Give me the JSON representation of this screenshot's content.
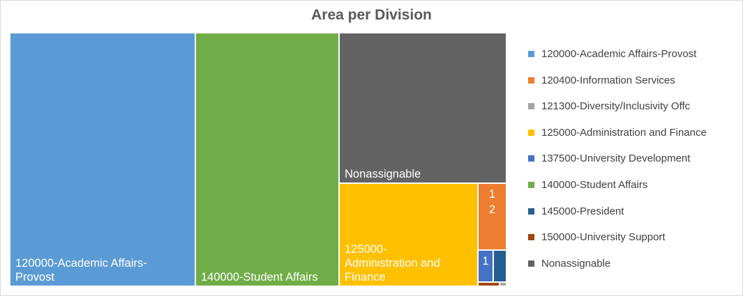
{
  "chart_data": {
    "type": "treemap",
    "title": "Area per Division",
    "legend_position": "right",
    "items": [
      {
        "name": "120000-Academic Affairs-Provost",
        "label": [
          "120000-Academic Affairs-",
          "Provost"
        ],
        "value": 37.5,
        "color": "#5B9BD5"
      },
      {
        "name": "140000-Student Affairs",
        "label": [
          "140000-Student Affairs"
        ],
        "value": 29.0,
        "color": "#70AD47"
      },
      {
        "name": "Nonassignable",
        "label": [
          "Nonassignable"
        ],
        "value": 20.0,
        "color": "#636363"
      },
      {
        "name": "125000-Administration and Finance",
        "label": [
          "125000-",
          "Administration and",
          "Finance"
        ],
        "value": 11.4,
        "color": "#FFC000"
      },
      {
        "name": "120400-Information Services",
        "label": [
          "1",
          "2"
        ],
        "value": 1.5,
        "color": "#ED7D31"
      },
      {
        "name": "137500-University Development",
        "label": [
          "1"
        ],
        "value": 0.45,
        "color": "#4472C4"
      },
      {
        "name": "145000-President",
        "label": [],
        "value": 0.3,
        "color": "#255E91"
      },
      {
        "name": "150000-University Support",
        "label": [],
        "value": 0.05,
        "color": "#9E480E"
      },
      {
        "name": "121300-Diversity/Inclusivity Offc",
        "label": [],
        "value": 0.02,
        "color": "#A5A5A5"
      }
    ],
    "legend": [
      {
        "name": "120000-Academic Affairs-Provost",
        "color": "#5B9BD5"
      },
      {
        "name": "120400-Information Services",
        "color": "#ED7D31"
      },
      {
        "name": "121300-Diversity/Inclusivity Offc",
        "color": "#A5A5A5"
      },
      {
        "name": "125000-Administration and Finance",
        "color": "#FFC000"
      },
      {
        "name": "137500-University Development",
        "color": "#4472C4"
      },
      {
        "name": "140000-Student Affairs",
        "color": "#70AD47"
      },
      {
        "name": "145000-President",
        "color": "#255E91"
      },
      {
        "name": "150000-University Support",
        "color": "#9E480E"
      },
      {
        "name": "Nonassignable",
        "color": "#636363"
      }
    ]
  }
}
